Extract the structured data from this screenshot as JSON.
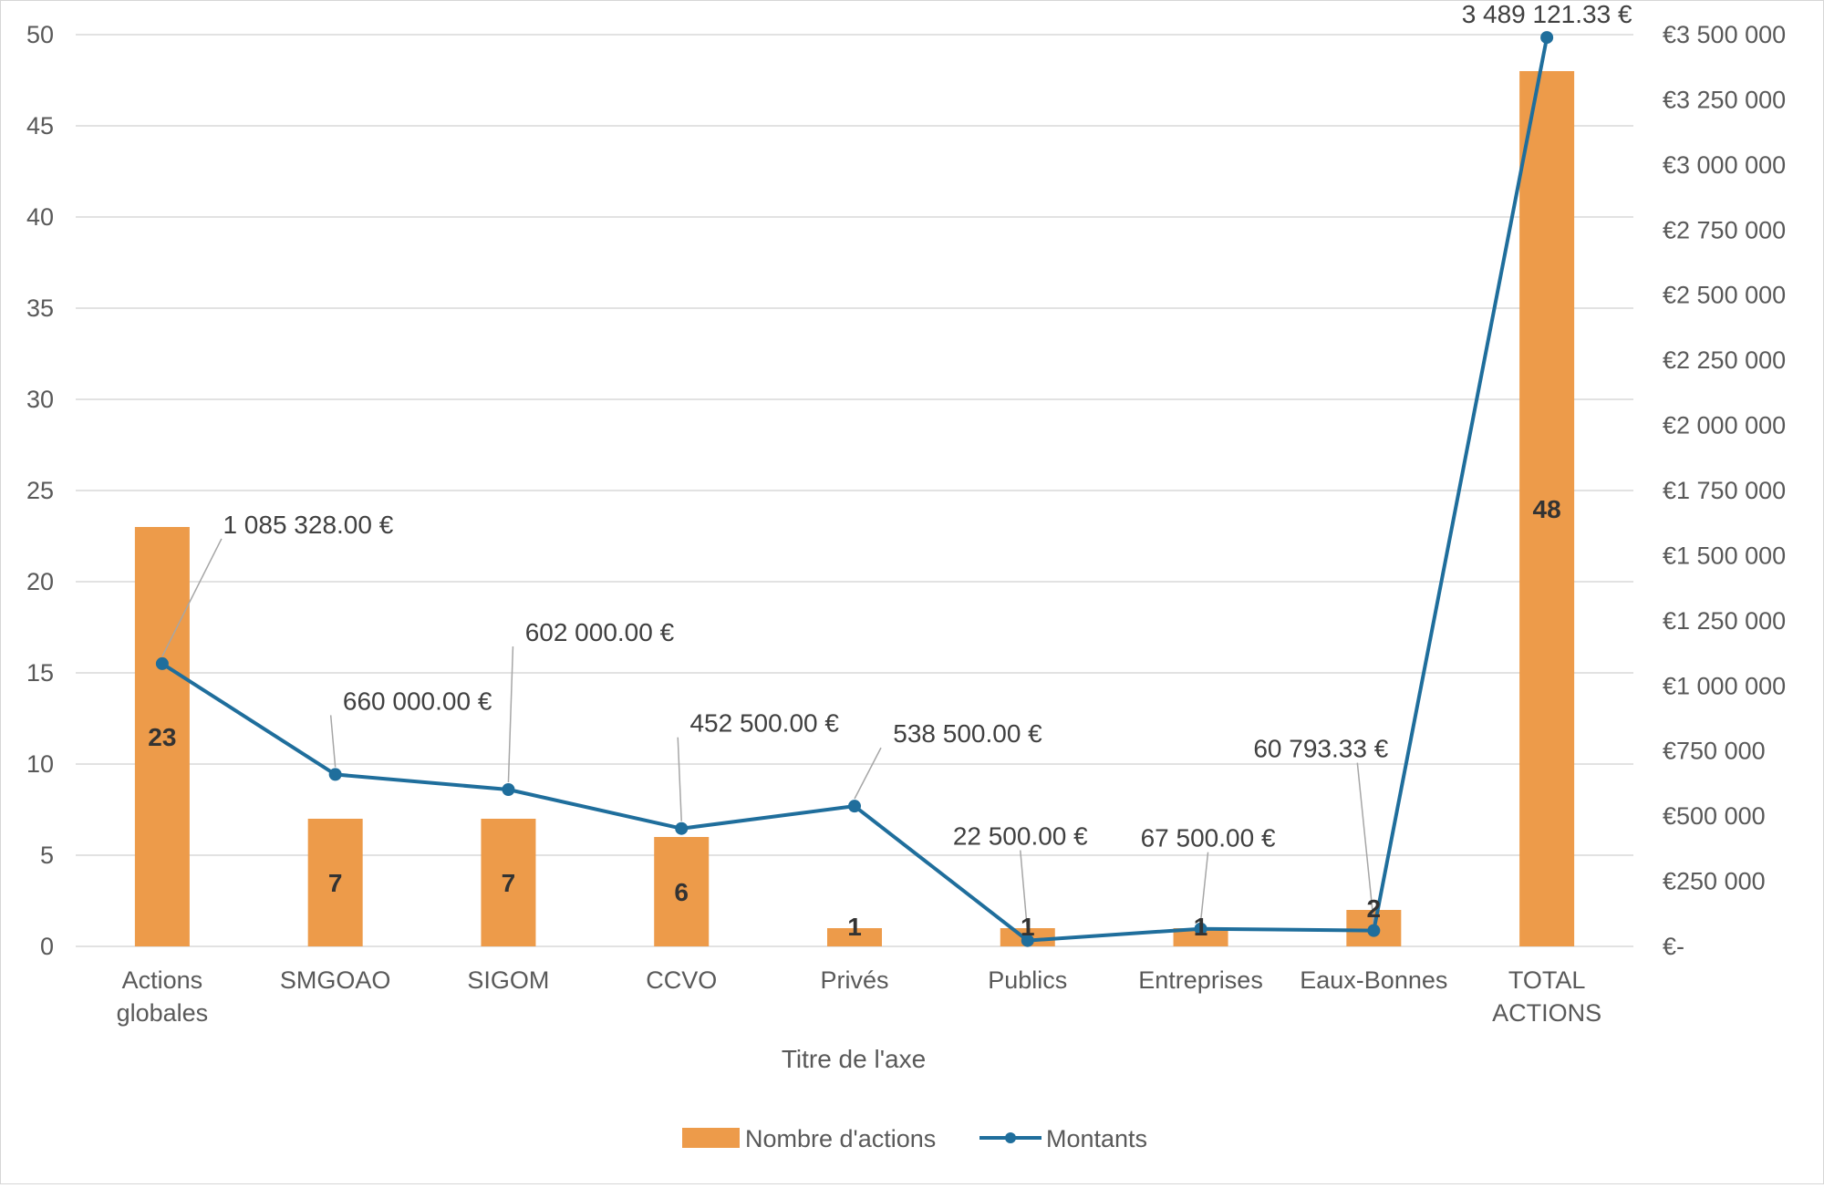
{
  "colors": {
    "bar": "#ED9B4A",
    "line": "#1F6E9C",
    "grid": "#E2E2E2",
    "text": "#595959"
  },
  "chart_data": {
    "type": "bar",
    "categories": [
      [
        "Actions",
        "globales"
      ],
      [
        "SMGOAO"
      ],
      [
        "SIGOM"
      ],
      [
        "CCVO"
      ],
      [
        "Privés"
      ],
      [
        "Publics"
      ],
      [
        "Entreprises"
      ],
      [
        "Eaux-Bonnes"
      ],
      [
        "TOTAL",
        "ACTIONS"
      ]
    ],
    "xlabel": "Titre de l'axe",
    "ylim_left": [
      0,
      50
    ],
    "ylim_right": [
      0,
      3500000
    ],
    "left_ticks": [
      "0",
      "5",
      "10",
      "15",
      "20",
      "25",
      "30",
      "35",
      "40",
      "45",
      "50"
    ],
    "right_ticks": [
      "€-",
      "€250 000",
      "€500 000",
      "€750 000",
      "€1 000 000",
      "€1 250 000",
      "€1 500 000",
      "€1 750 000",
      "€2 000 000",
      "€2 250 000",
      "€2 500 000",
      "€2 750 000",
      "€3 000 000",
      "€3 250 000",
      "€3 500 000"
    ],
    "grid": true,
    "legend_position": "bottom",
    "series": [
      {
        "name": "Nombre d'actions",
        "type": "bar",
        "axis": "left",
        "values": [
          23,
          7,
          7,
          6,
          1,
          1,
          1,
          2,
          48
        ],
        "labels": [
          "23",
          "7",
          "7",
          "6",
          "1",
          "1",
          "1",
          "2",
          "48"
        ]
      },
      {
        "name": "Montants",
        "type": "line",
        "axis": "right",
        "values": [
          1085328.0,
          660000.0,
          602000.0,
          452500.0,
          538500.0,
          22500.0,
          67500.0,
          60793.33,
          3489121.33
        ],
        "labels": [
          "1 085 328.00 €",
          "660 000.00 €",
          "602 000.00 €",
          "452 500.00 €",
          "538 500.00 €",
          "22 500.00 €",
          "67 500.00 €",
          "60 793.33 €",
          "3 489 121.33 €"
        ]
      }
    ]
  }
}
